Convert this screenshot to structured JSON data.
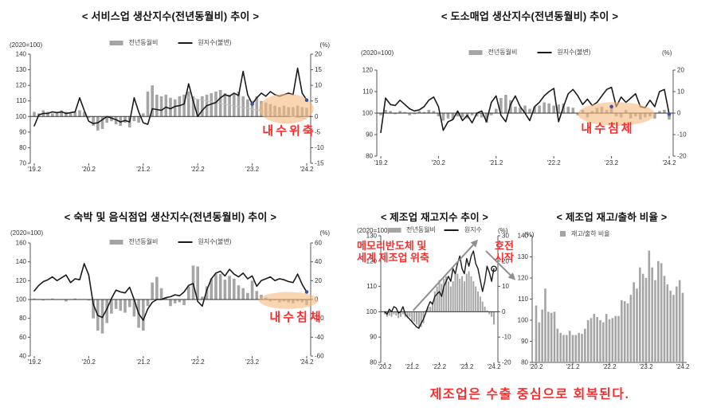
{
  "page": {
    "background": "#ffffff",
    "footer_note": "제조업은 수출 중심으로 회복된다."
  },
  "colors": {
    "bar": "#a5a5a5",
    "line": "#1a1a1a",
    "axis": "#555555",
    "tick_text": "#333333",
    "baseline": "#333333",
    "red": "#f82e2e",
    "ellipse": "#f6b97e",
    "arrow": "#8f8f8f",
    "dot": "#3f51a3",
    "trend": "#c4c4c4"
  },
  "chart_data": [
    {
      "type": "bar+line",
      "title": "< 서비스업 생산지수(전년동월비) 추이 >",
      "left_unit": "(2020=100)",
      "right_unit": "(%)",
      "legend": [
        "전년동월비",
        "원지수(불변)"
      ],
      "x_tick_labels": [
        "'19.2",
        "'20.2",
        "'21.2",
        "'22.2",
        "'23.2",
        "'24.2"
      ],
      "x_tick_indices": [
        0,
        12,
        24,
        36,
        48,
        60
      ],
      "left_axis": {
        "min": 70,
        "max": 140,
        "ticks": [
          140,
          130,
          120,
          110,
          100,
          90,
          80,
          70
        ]
      },
      "right_axis": {
        "min": -15,
        "max": 20,
        "ticks": [
          20,
          15,
          10,
          5,
          0,
          -5,
          -10,
          -15
        ]
      },
      "baseline": 100,
      "bars_axis": "right",
      "bars": [
        1.5,
        1,
        2,
        1.5,
        1,
        1.5,
        2,
        1.5,
        1,
        1.5,
        2,
        1.5,
        -0.5,
        -3,
        -4.5,
        -4,
        -2,
        -1.5,
        -2.5,
        -3,
        -2,
        -3.5,
        -1.5,
        -2,
        1,
        8,
        10,
        7,
        6.5,
        7,
        6,
        5.5,
        6.5,
        7,
        8,
        6.5,
        5.5,
        6.5,
        7,
        7.5,
        8,
        8.5,
        7.5,
        7,
        7.5,
        8,
        6.5,
        5.5,
        5,
        6.5,
        5,
        4.5,
        4,
        3.5,
        3,
        3.5,
        3,
        3,
        3.5,
        3,
        2.8
      ],
      "line": [
        94,
        101,
        102,
        102,
        103,
        102.5,
        103,
        102,
        102.5,
        103,
        112,
        104,
        97,
        95.5,
        96,
        98,
        100,
        99,
        98,
        96.5,
        97.5,
        96.5,
        112,
        103,
        96,
        95,
        105,
        104.5,
        104,
        106,
        105,
        106.5,
        107,
        108,
        121,
        110,
        100,
        104,
        107,
        108,
        109,
        112,
        114,
        113,
        115,
        113.5,
        129,
        114,
        108,
        112,
        115,
        113,
        116,
        114,
        113,
        114,
        115,
        114,
        131,
        115,
        110.5
      ],
      "annotation_text": {
        "callout": "내수위축"
      },
      "marks": {
        "ellipse": {
          "i": 55.5,
          "p": 2.5,
          "ri": 6,
          "rp": 4.8,
          "axis": "right"
        },
        "trend_line": {
          "axis": "right",
          "from": {
            "i": 33,
            "p": 6.3
          },
          "to": {
            "i": 60,
            "p": -0.8
          }
        },
        "dots": [
          {
            "i": 48,
            "v": 108
          },
          {
            "i": 60,
            "v": 110.5
          }
        ]
      }
    },
    {
      "type": "bar+line",
      "title": "< 도소매업 생산지수(전년동월비) 추이 >",
      "left_unit": "(2020=100)",
      "right_unit": "(%)",
      "legend": [
        "전년동월비",
        "원지수(불변)"
      ],
      "x_tick_labels": [
        "'19.2",
        "'20.2",
        "'21.2",
        "'22.2",
        "'23.2",
        "'24.2"
      ],
      "x_tick_indices": [
        0,
        12,
        24,
        36,
        48,
        60
      ],
      "left_axis": {
        "min": 80,
        "max": 120,
        "ticks": [
          120,
          110,
          100,
          90,
          80
        ]
      },
      "right_axis": {
        "min": -20,
        "max": 20,
        "ticks": [
          20,
          10,
          0,
          -10,
          -20
        ]
      },
      "baseline": 100,
      "bars_axis": "right",
      "bars": [
        -1,
        1.5,
        1,
        -0.5,
        1,
        0.5,
        -1,
        -0.5,
        1,
        0.5,
        1.5,
        1,
        -1.5,
        -3.5,
        -2.5,
        -3,
        -1.5,
        -2,
        -2.5,
        -1,
        -1.5,
        -2,
        -4.5,
        -1,
        2,
        7,
        8.5,
        6,
        3,
        2.5,
        3.5,
        2,
        3,
        3.5,
        5,
        4.5,
        3.5,
        4,
        4.5,
        3,
        2.5,
        -1,
        1.5,
        -2,
        1,
        2.5,
        3,
        1.5,
        2.5,
        -1.5,
        -2,
        1.5,
        -2.5,
        -1.5,
        -3,
        -2,
        -1.5,
        -2.5,
        1,
        1.5,
        -3
      ],
      "line": [
        91,
        107,
        104,
        103.5,
        106,
        104,
        102,
        101,
        101.5,
        103,
        106,
        107.5,
        103,
        92,
        96,
        97,
        101,
        96.5,
        99,
        95.5,
        100,
        101,
        96,
        105,
        108,
        99,
        96,
        104,
        108,
        103,
        100,
        96.5,
        103,
        105,
        108,
        110,
        111.5,
        96,
        103,
        109,
        111,
        108,
        104,
        106.5,
        103.5,
        105,
        108,
        111,
        112,
        103,
        107.5,
        105,
        107,
        109,
        103,
        102.5,
        106,
        103,
        110,
        111,
        99.5
      ],
      "annotation_text": {
        "callout": "내수침체"
      },
      "marks": {
        "ellipse": {
          "i": 49,
          "p": -0.4,
          "ri": 8,
          "rp": 5.5,
          "axis": "right"
        },
        "dots": [
          {
            "i": 48,
            "v": 103
          },
          {
            "i": 60,
            "v": 99.5
          }
        ]
      }
    },
    {
      "type": "bar+line",
      "title": "< 숙박 및 음식점업 생산지수(전년동월비) 추이 >",
      "left_unit": "(2020=100)",
      "right_unit": "(%)",
      "legend": [
        "전년동월비",
        "원지수(불변)"
      ],
      "x_tick_labels": [
        "'19.2",
        "'20.2",
        "'21.2",
        "'22.2",
        "'23.2",
        "'24.2"
      ],
      "x_tick_indices": [
        0,
        12,
        24,
        36,
        48,
        60
      ],
      "left_axis": {
        "min": 40,
        "max": 160,
        "ticks": [
          160,
          140,
          120,
          100,
          80,
          60,
          40
        ]
      },
      "right_axis": {
        "min": -60,
        "max": 60,
        "ticks": [
          60,
          40,
          20,
          0,
          -20,
          -40,
          -60
        ]
      },
      "baseline": 100,
      "bars_axis": "right",
      "bars": [
        1,
        0.5,
        -1,
        0.5,
        1,
        -0.5,
        0.5,
        -2,
        0.5,
        1,
        0.5,
        0.5,
        -1,
        -20,
        -33,
        -36,
        -25,
        -15,
        -10,
        -12,
        -14,
        -8,
        -18,
        -30,
        -33,
        -7,
        18,
        24,
        12,
        2,
        -7,
        -4,
        -3,
        -6,
        14,
        36,
        35,
        3,
        14,
        22,
        27,
        27,
        21,
        25,
        22,
        15,
        12,
        7,
        20,
        9,
        5,
        2,
        -2,
        -1,
        -3,
        -2,
        -3,
        -4,
        -2,
        -3,
        -6
      ],
      "line": [
        109,
        115,
        119,
        121,
        124,
        120,
        123,
        126,
        118,
        122,
        121,
        138,
        126,
        95,
        83,
        81,
        90,
        101,
        110,
        108,
        107,
        113,
        100,
        85,
        78,
        90,
        97,
        100,
        100,
        102,
        103,
        105,
        104,
        108,
        115,
        117,
        98,
        93,
        110,
        122,
        128,
        130,
        125,
        132,
        127,
        124,
        128,
        122,
        125,
        114,
        120,
        122,
        124,
        120,
        122,
        121,
        119,
        118,
        127,
        116,
        108
      ],
      "annotation_text": {
        "callout": "내수침체"
      },
      "marks": {
        "ellipse": {
          "i": 56,
          "p": -1,
          "ri": 6.5,
          "rp": 9,
          "axis": "right"
        },
        "dots": [
          {
            "i": 60,
            "v": 108
          }
        ]
      }
    },
    {
      "type": "bar+line",
      "title": "< 제조업 재고지수 추이 >",
      "left_unit": "(2020=100)",
      "right_unit": "(%)",
      "legend": [
        "전년동월비",
        "원지수"
      ],
      "x_tick_labels": [
        "'20.2",
        "'21.2",
        "'22.2",
        "'23.2",
        "'24.2"
      ],
      "x_tick_indices": [
        0,
        12,
        24,
        36,
        48
      ],
      "left_axis": {
        "min": 80,
        "max": 130,
        "ticks": [
          130,
          120,
          110,
          100,
          90,
          80
        ]
      },
      "right_axis": {
        "min": -20,
        "max": 30,
        "ticks": [
          30,
          20,
          10,
          0,
          -10,
          -20
        ]
      },
      "baseline": 100,
      "bars_axis": "right",
      "bars": [
        -1,
        -2,
        -1.5,
        -2,
        -1,
        -1.5,
        -2.5,
        -2,
        -1,
        -2,
        -2.5,
        -2,
        -4,
        -4,
        -5,
        -6.5,
        -6,
        -4.5,
        0.5,
        2,
        2,
        4,
        8,
        10,
        12.5,
        11,
        13,
        14,
        12,
        10,
        12,
        15,
        15,
        13,
        14,
        12,
        15,
        16,
        14,
        12,
        10,
        8,
        6,
        4,
        2,
        0.5,
        -1,
        -2,
        -5
      ],
      "line": [
        100,
        99,
        101,
        100,
        102,
        101.5,
        99.5,
        100,
        102,
        99,
        98,
        97,
        96,
        95,
        94,
        93.5,
        95.5,
        97,
        99.5,
        102,
        104,
        103,
        106,
        107,
        108,
        106,
        110,
        112,
        114,
        112,
        117,
        115,
        119,
        122,
        117,
        115,
        121,
        118,
        122,
        124,
        119,
        117,
        112.5,
        108,
        112,
        118,
        115.5,
        112,
        117
      ],
      "annotation_text": {
        "left_line1": "메모리반도체 및",
        "left_line2": "세계 제조업 위축",
        "right_line1": "호전",
        "right_line2": "시작"
      },
      "marks": {
        "arrows": [
          {
            "from": {
              "i": 12.5,
              "v": 100.5
            },
            "to": {
              "i": 41,
              "v": 128.5
            }
          },
          {
            "from": {
              "i": 44.5,
              "v": 124
            },
            "to": {
              "i": 57.5,
              "v": 112.5
            }
          }
        ],
        "open_dot": {
          "i": 48,
          "v": 117
        }
      }
    },
    {
      "type": "bar",
      "title": "< 제조업 재고/출하 비율 >",
      "left_unit": "(%)",
      "legend": [
        "재고/출하 비율"
      ],
      "x_tick_labels": [
        "'20.2",
        "'21.2",
        "'22.2",
        "'23.2",
        "'24.2"
      ],
      "x_tick_indices": [
        0,
        12,
        24,
        36,
        48
      ],
      "left_axis": {
        "min": 80,
        "max": 140,
        "ticks": [
          140,
          130,
          120,
          110,
          100,
          90,
          80
        ]
      },
      "bars_axis": "left",
      "bottom_line": true,
      "bars": [
        107,
        99,
        105,
        115,
        104,
        103.5,
        104,
        96,
        94,
        93,
        93,
        95,
        93,
        93,
        94,
        93.5,
        96,
        100,
        101,
        103,
        101.5,
        100,
        99,
        103,
        100.5,
        101,
        102,
        102,
        109.5,
        109,
        108,
        112,
        118,
        115,
        125,
        122,
        120,
        133,
        125,
        119,
        128,
        127,
        121,
        117,
        114,
        112,
        116,
        119,
        113
      ]
    }
  ]
}
